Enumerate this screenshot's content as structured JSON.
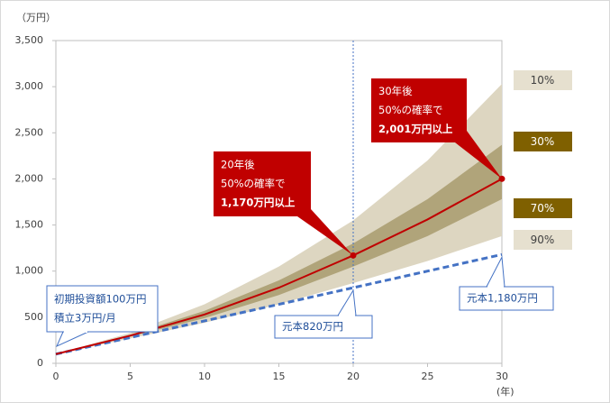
{
  "chart_data": {
    "type": "band",
    "y_unit": "（万円）",
    "x_unit": "(年)",
    "x": [
      0,
      5,
      10,
      15,
      20,
      25,
      30
    ],
    "xlim": [
      0,
      30
    ],
    "xticks": [
      0,
      5,
      10,
      15,
      20,
      25,
      30
    ],
    "ylim": [
      0,
      3500
    ],
    "yticks": [
      0,
      500,
      {
        "value": 1000,
        "label": "1,000"
      },
      {
        "value": 1500,
        "label": "1,500"
      },
      {
        "value": 2000,
        "label": "2,000"
      },
      {
        "value": 2500,
        "label": "2,500"
      },
      {
        "value": 3000,
        "label": "3,000"
      },
      {
        "value": 3500,
        "label": "3,500"
      }
    ],
    "vline_x": 20,
    "series": [
      {
        "name": "10%",
        "color": "#e6e0cf",
        "values": [
          100,
          330,
          640,
          1050,
          1550,
          2200,
          3030
        ]
      },
      {
        "name": "30%",
        "color": "#7f6000",
        "values": [
          100,
          310,
          570,
          900,
          1300,
          1780,
          2370
        ]
      },
      {
        "name": "70%",
        "color": "#7f6000",
        "values": [
          100,
          290,
          490,
          740,
          1050,
          1380,
          1780
        ]
      },
      {
        "name": "90%",
        "color": "#e6e0cf",
        "values": [
          100,
          270,
          440,
          640,
          870,
          1110,
          1380
        ]
      }
    ],
    "median": {
      "color": "#c00000",
      "values": [
        100,
        300,
        530,
        820,
        1170,
        1560,
        2001
      ]
    },
    "principal": {
      "color": "#4472c4",
      "values": [
        100,
        280,
        460,
        640,
        820,
        1000,
        1180
      ]
    },
    "annotations": [
      {
        "lines": [
          "20年後",
          "50%の確率で",
          "1,170万円以上"
        ]
      },
      {
        "lines": [
          "30年後",
          "50%の確率で",
          "2,001万円以上"
        ]
      },
      {
        "lines": [
          "初期投資額100万円",
          "積立3万円/月"
        ]
      },
      {
        "lines": [
          "元本820万円"
        ]
      },
      {
        "lines": [
          "元本1,180万円"
        ]
      }
    ]
  }
}
